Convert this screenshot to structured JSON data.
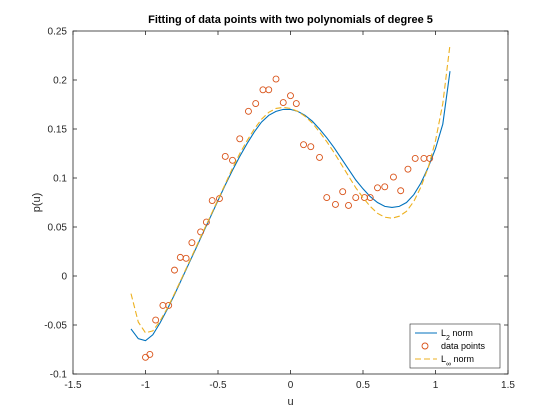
{
  "chart_data": {
    "type": "line",
    "title": "Fitting of data points with two polynomials of degree 5",
    "xlabel": "u",
    "ylabel": "p(u)",
    "xlim": [
      -1.5,
      1.5
    ],
    "ylim": [
      -0.1,
      0.25
    ],
    "xticks": [
      "-1.5",
      "-1",
      "-0.5",
      "0",
      "0.5",
      "1",
      "1.5"
    ],
    "xtick_values": [
      -1.5,
      -1,
      -0.5,
      0,
      0.5,
      1,
      1.5
    ],
    "yticks": [
      "-0.1",
      "-0.05",
      "0",
      "0.05",
      "0.1",
      "0.15",
      "0.2",
      "0.25"
    ],
    "ytick_values": [
      -0.1,
      -0.05,
      0,
      0.05,
      0.1,
      0.15,
      0.2,
      0.25
    ],
    "grid": false,
    "legend_position": "bottom-right",
    "series": [
      {
        "name": "L",
        "name_sub": "2",
        "name_suffix": " norm",
        "style": "solid",
        "color": "#0072BD",
        "x": [
          -1.1,
          -1.05,
          -1.0,
          -0.95,
          -0.9,
          -0.85,
          -0.8,
          -0.75,
          -0.7,
          -0.65,
          -0.6,
          -0.55,
          -0.5,
          -0.45,
          -0.4,
          -0.35,
          -0.3,
          -0.25,
          -0.2,
          -0.15,
          -0.1,
          -0.05,
          0.0,
          0.05,
          0.1,
          0.15,
          0.2,
          0.25,
          0.3,
          0.35,
          0.4,
          0.45,
          0.5,
          0.55,
          0.6,
          0.65,
          0.7,
          0.75,
          0.8,
          0.85,
          0.9,
          0.95,
          1.0,
          1.05,
          1.1
        ],
        "y": [
          -0.054,
          -0.064,
          -0.066,
          -0.06,
          -0.048,
          -0.034,
          -0.019,
          -0.003,
          0.013,
          0.029,
          0.045,
          0.061,
          0.077,
          0.093,
          0.108,
          0.122,
          0.135,
          0.147,
          0.157,
          0.164,
          0.168,
          0.17,
          0.17,
          0.168,
          0.164,
          0.158,
          0.15,
          0.141,
          0.131,
          0.12,
          0.109,
          0.098,
          0.089,
          0.081,
          0.075,
          0.071,
          0.07,
          0.071,
          0.075,
          0.083,
          0.095,
          0.111,
          0.13,
          0.155,
          0.209
        ]
      },
      {
        "name": "data points",
        "style": "marker",
        "color": "#D95319",
        "x": [
          -1.0,
          -0.97,
          -0.93,
          -0.88,
          -0.84,
          -0.8,
          -0.76,
          -0.72,
          -0.68,
          -0.62,
          -0.58,
          -0.54,
          -0.49,
          -0.45,
          -0.4,
          -0.35,
          -0.29,
          -0.24,
          -0.19,
          -0.15,
          -0.1,
          -0.05,
          0.0,
          0.04,
          0.09,
          0.14,
          0.2,
          0.25,
          0.31,
          0.36,
          0.4,
          0.45,
          0.51,
          0.55,
          0.6,
          0.65,
          0.71,
          0.76,
          0.81,
          0.86,
          0.92,
          0.96
        ],
        "y": [
          -0.083,
          -0.08,
          -0.045,
          -0.03,
          -0.03,
          0.006,
          0.019,
          0.018,
          0.034,
          0.045,
          0.055,
          0.077,
          0.079,
          0.122,
          0.118,
          0.14,
          0.168,
          0.176,
          0.19,
          0.19,
          0.201,
          0.177,
          0.184,
          0.176,
          0.134,
          0.132,
          0.121,
          0.08,
          0.073,
          0.086,
          0.072,
          0.08,
          0.08,
          0.08,
          0.09,
          0.091,
          0.101,
          0.087,
          0.109,
          0.12,
          0.12,
          0.12
        ]
      },
      {
        "name": "L",
        "name_sub": "∞",
        "name_suffix": " norm",
        "style": "dashed",
        "color": "#EDB120",
        "x": [
          -1.1,
          -1.05,
          -1.0,
          -0.95,
          -0.9,
          -0.85,
          -0.8,
          -0.75,
          -0.7,
          -0.65,
          -0.6,
          -0.55,
          -0.5,
          -0.45,
          -0.4,
          -0.35,
          -0.3,
          -0.25,
          -0.2,
          -0.15,
          -0.1,
          -0.05,
          0.0,
          0.05,
          0.1,
          0.15,
          0.2,
          0.25,
          0.3,
          0.35,
          0.4,
          0.45,
          0.5,
          0.55,
          0.6,
          0.65,
          0.7,
          0.75,
          0.8,
          0.85,
          0.9,
          0.95,
          1.0,
          1.05,
          1.1
        ],
        "y": [
          -0.018,
          -0.047,
          -0.058,
          -0.056,
          -0.046,
          -0.033,
          -0.018,
          -0.002,
          0.014,
          0.03,
          0.046,
          0.062,
          0.078,
          0.094,
          0.11,
          0.125,
          0.138,
          0.15,
          0.16,
          0.167,
          0.171,
          0.172,
          0.171,
          0.168,
          0.163,
          0.156,
          0.147,
          0.137,
          0.126,
          0.114,
          0.102,
          0.09,
          0.08,
          0.071,
          0.064,
          0.06,
          0.059,
          0.061,
          0.066,
          0.076,
          0.091,
          0.111,
          0.138,
          0.176,
          0.236
        ]
      }
    ]
  }
}
